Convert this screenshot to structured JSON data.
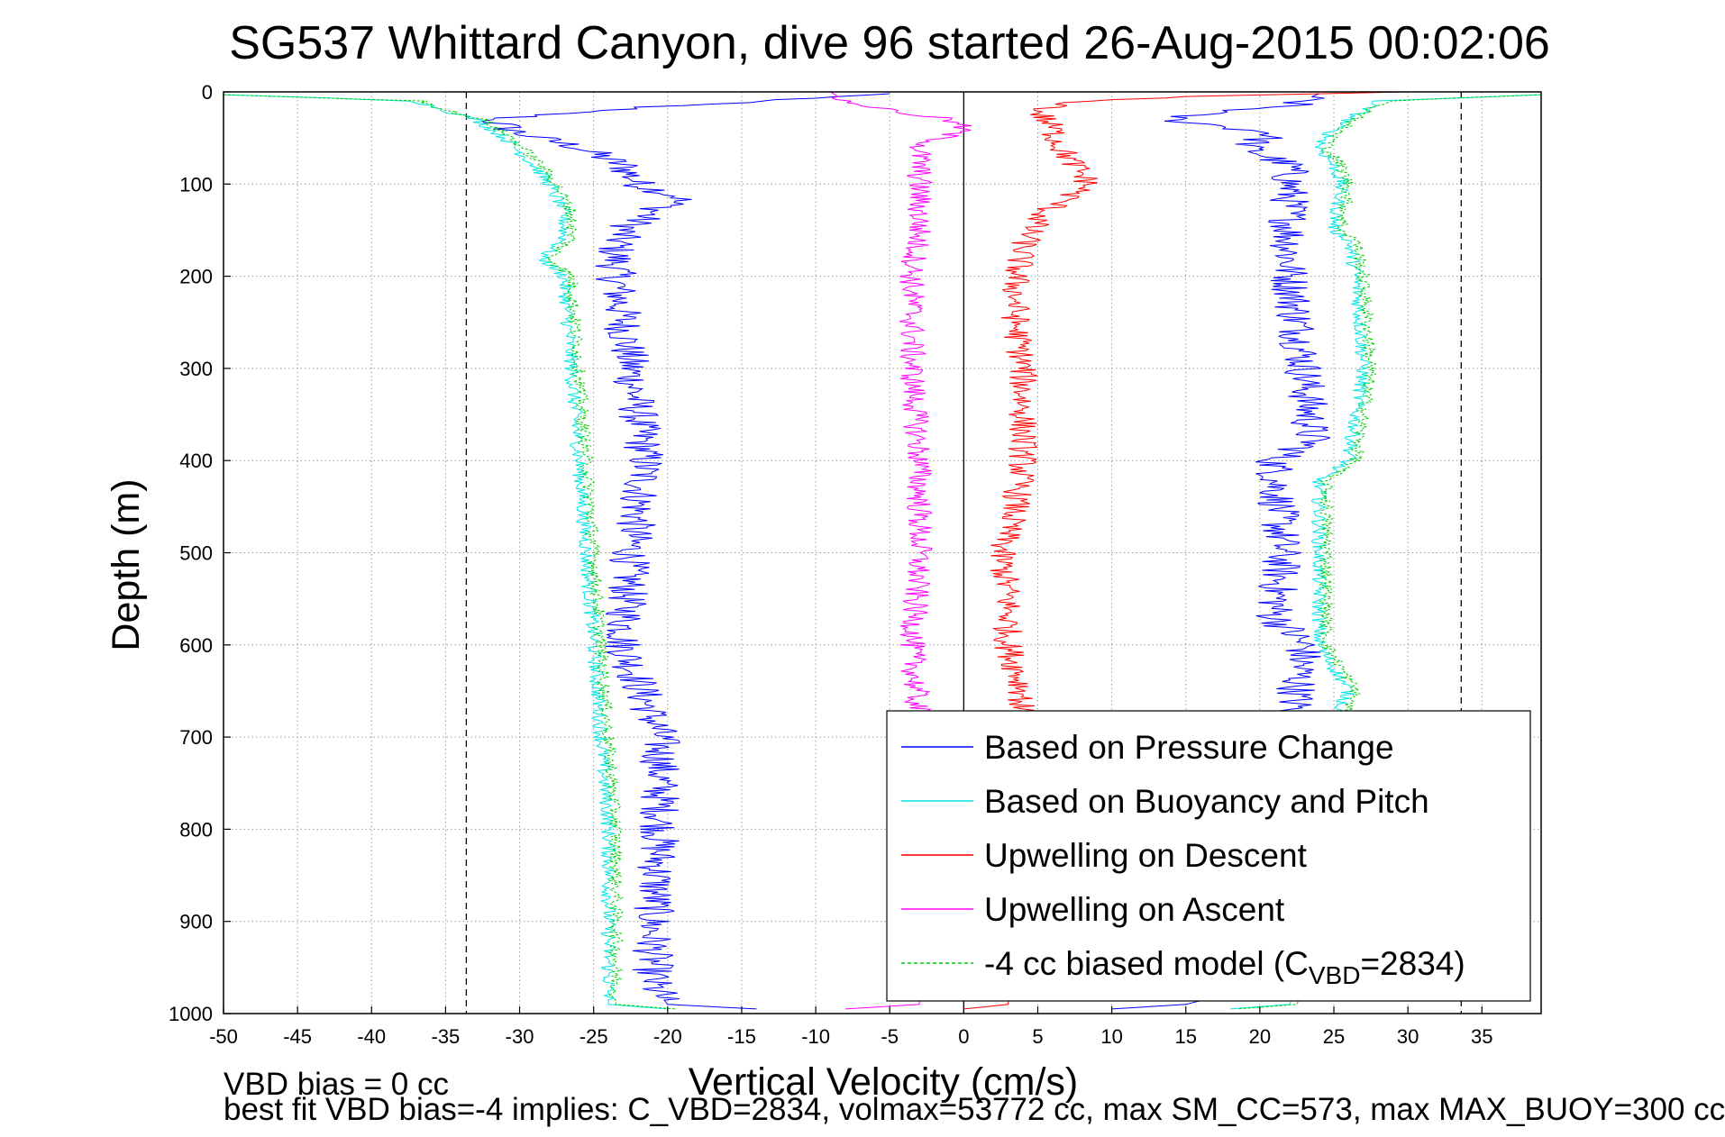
{
  "chart_data": {
    "type": "line",
    "title": "SG537 Whittard Canyon, dive 96 started 26-Aug-2015 00:02:06",
    "xlabel": "Vertical Velocity (cm/s)",
    "ylabel": "Depth (m)",
    "xlim": [
      -50,
      39
    ],
    "ylim": [
      0,
      1000
    ],
    "y_reversed": true,
    "x_ticks": [
      "-50",
      "-45",
      "-40",
      "-35",
      "-30",
      "-25",
      "-20",
      "-15",
      "-10",
      "-5",
      "0",
      "5",
      "10",
      "15",
      "20",
      "25",
      "30",
      "35"
    ],
    "y_ticks": [
      "0",
      "100",
      "200",
      "300",
      "400",
      "500",
      "600",
      "700",
      "800",
      "900",
      "1000"
    ],
    "grid": true,
    "legend_position": "bottom-right",
    "reference_lines": [
      {
        "axis": "x",
        "value": -33.6,
        "style": "dashed",
        "color": "#000000"
      },
      {
        "axis": "x",
        "value": 33.6,
        "style": "dashed",
        "color": "#000000"
      },
      {
        "axis": "x",
        "value": 0,
        "style": "solid",
        "color": "#000000"
      }
    ],
    "series": [
      {
        "name": "Based on Pressure Change",
        "color": "#0000ff",
        "branches": [
          {
            "depth": [
              2,
              10,
              20,
              30,
              45,
              60,
              80,
              100,
              115,
              130,
              150,
              170,
              200,
              300,
              400,
              500,
              600,
              700,
              800,
              900,
              970,
              990,
              995
            ],
            "velocity": [
              -5,
              -14,
              -25,
              -32,
              -30,
              -26,
              -23,
              -22,
              -19,
              -21,
              -23,
              -23.5,
              -23.5,
              -22.5,
              -21.5,
              -22.5,
              -23,
              -20.5,
              -20.5,
              -21,
              -21,
              -20,
              -14
            ]
          },
          {
            "depth": [
              2,
              15,
              25,
              30,
              45,
              60,
              80,
              100,
              200,
              300,
              380,
              400,
              500,
              570,
              600,
              700,
              800,
              900,
              970,
              990,
              995
            ],
            "velocity": [
              24,
              22,
              15,
              14,
              21,
              19,
              22,
              22,
              22,
              23,
              23.5,
              21,
              21.5,
              21,
              23,
              22,
              21,
              21,
              20,
              15,
              10
            ]
          }
        ]
      },
      {
        "name": "Based on Buoyancy and Pitch",
        "color": "#00e5e5",
        "branches": [
          {
            "depth": [
              3,
              10,
              20,
              30,
              50,
              80,
              100,
              130,
              160,
              180,
              200,
              300,
              400,
              500,
              600,
              700,
              800,
              900,
              990,
              995
            ],
            "velocity": [
              -50,
              -37,
              -35,
              -33,
              -31,
              -29,
              -28,
              -27,
              -27,
              -28.5,
              -27,
              -26.5,
              -26,
              -25.5,
              -25,
              -24.5,
              -24,
              -24,
              -24,
              -20
            ]
          },
          {
            "depth": [
              3,
              10,
              20,
              40,
              60,
              80,
              100,
              150,
              160,
              200,
              300,
              400,
              420,
              500,
              600,
              650,
              700,
              800,
              900,
              990,
              995
            ],
            "velocity": [
              39,
              28,
              27,
              25,
              24,
              25,
              25.5,
              25,
              26,
              26.5,
              27,
              26,
              24,
              24,
              24,
              26,
              24.5,
              24.5,
              24.5,
              22,
              18
            ]
          }
        ]
      },
      {
        "name": "Upwelling on Descent",
        "color": "#ff0000",
        "branches": [
          {
            "depth": [
              0,
              5,
              10,
              20,
              40,
              60,
              80,
              100,
              115,
              130,
              150,
              170,
              200,
              250,
              300,
              350,
              400,
              450,
              500,
              550,
              600,
              650,
              700,
              800,
              900,
              990,
              995
            ],
            "velocity": [
              30,
              15,
              8,
              5,
              6,
              6.5,
              7.5,
              8.5,
              7,
              5.5,
              4.5,
              4,
              3.5,
              3.5,
              4,
              4,
              4,
              3.5,
              2.5,
              3,
              3,
              4,
              3.5,
              3.5,
              3.5,
              3,
              0
            ]
          }
        ]
      },
      {
        "name": "Upwelling on Ascent",
        "color": "#ff00ff",
        "branches": [
          {
            "depth": [
              0,
              10,
              20,
              30,
              40,
              60,
              80,
              100,
              150,
              200,
              300,
              400,
              500,
              600,
              700,
              800,
              900,
              990,
              995
            ],
            "velocity": [
              -9,
              -8,
              -5,
              -1,
              0,
              -3,
              -3,
              -3,
              -3,
              -3.5,
              -3.5,
              -3,
              -3,
              -3.5,
              -3,
              -3,
              -3,
              -3,
              -8
            ]
          }
        ]
      },
      {
        "name": "-4 cc biased model (C<sub>VBD</sub>=2834)",
        "color": "#00cc00",
        "style": "dashed",
        "branches": [
          {
            "depth": [
              3,
              10,
              20,
              30,
              50,
              80,
              100,
              130,
              160,
              180,
              200,
              300,
              400,
              500,
              600,
              700,
              800,
              900,
              990,
              995
            ],
            "velocity": [
              -50,
              -36.5,
              -35,
              -32.5,
              -30.5,
              -28.5,
              -27.5,
              -26.5,
              -26.5,
              -28,
              -26.5,
              -26,
              -25.5,
              -25,
              -24.5,
              -24,
              -23.5,
              -23.5,
              -23.5,
              -19.5
            ]
          },
          {
            "depth": [
              3,
              10,
              20,
              40,
              60,
              80,
              100,
              150,
              160,
              200,
              300,
              400,
              420,
              500,
              600,
              650,
              700,
              800,
              900,
              990,
              995
            ],
            "velocity": [
              39,
              28.5,
              27.5,
              25.5,
              24.5,
              25.5,
              26,
              25.5,
              26.5,
              27,
              27.5,
              26.5,
              24.5,
              24.5,
              24.5,
              26.5,
              25,
              25,
              25,
              22.5,
              18.5
            ]
          }
        ]
      }
    ],
    "annotations": [
      "VBD bias = 0 cc",
      "best fit VBD bias=-4 implies: C_VBD=2834, volmax=53772 cc, max SM_CC=573, max MAX_BUOY=300 cc"
    ]
  }
}
